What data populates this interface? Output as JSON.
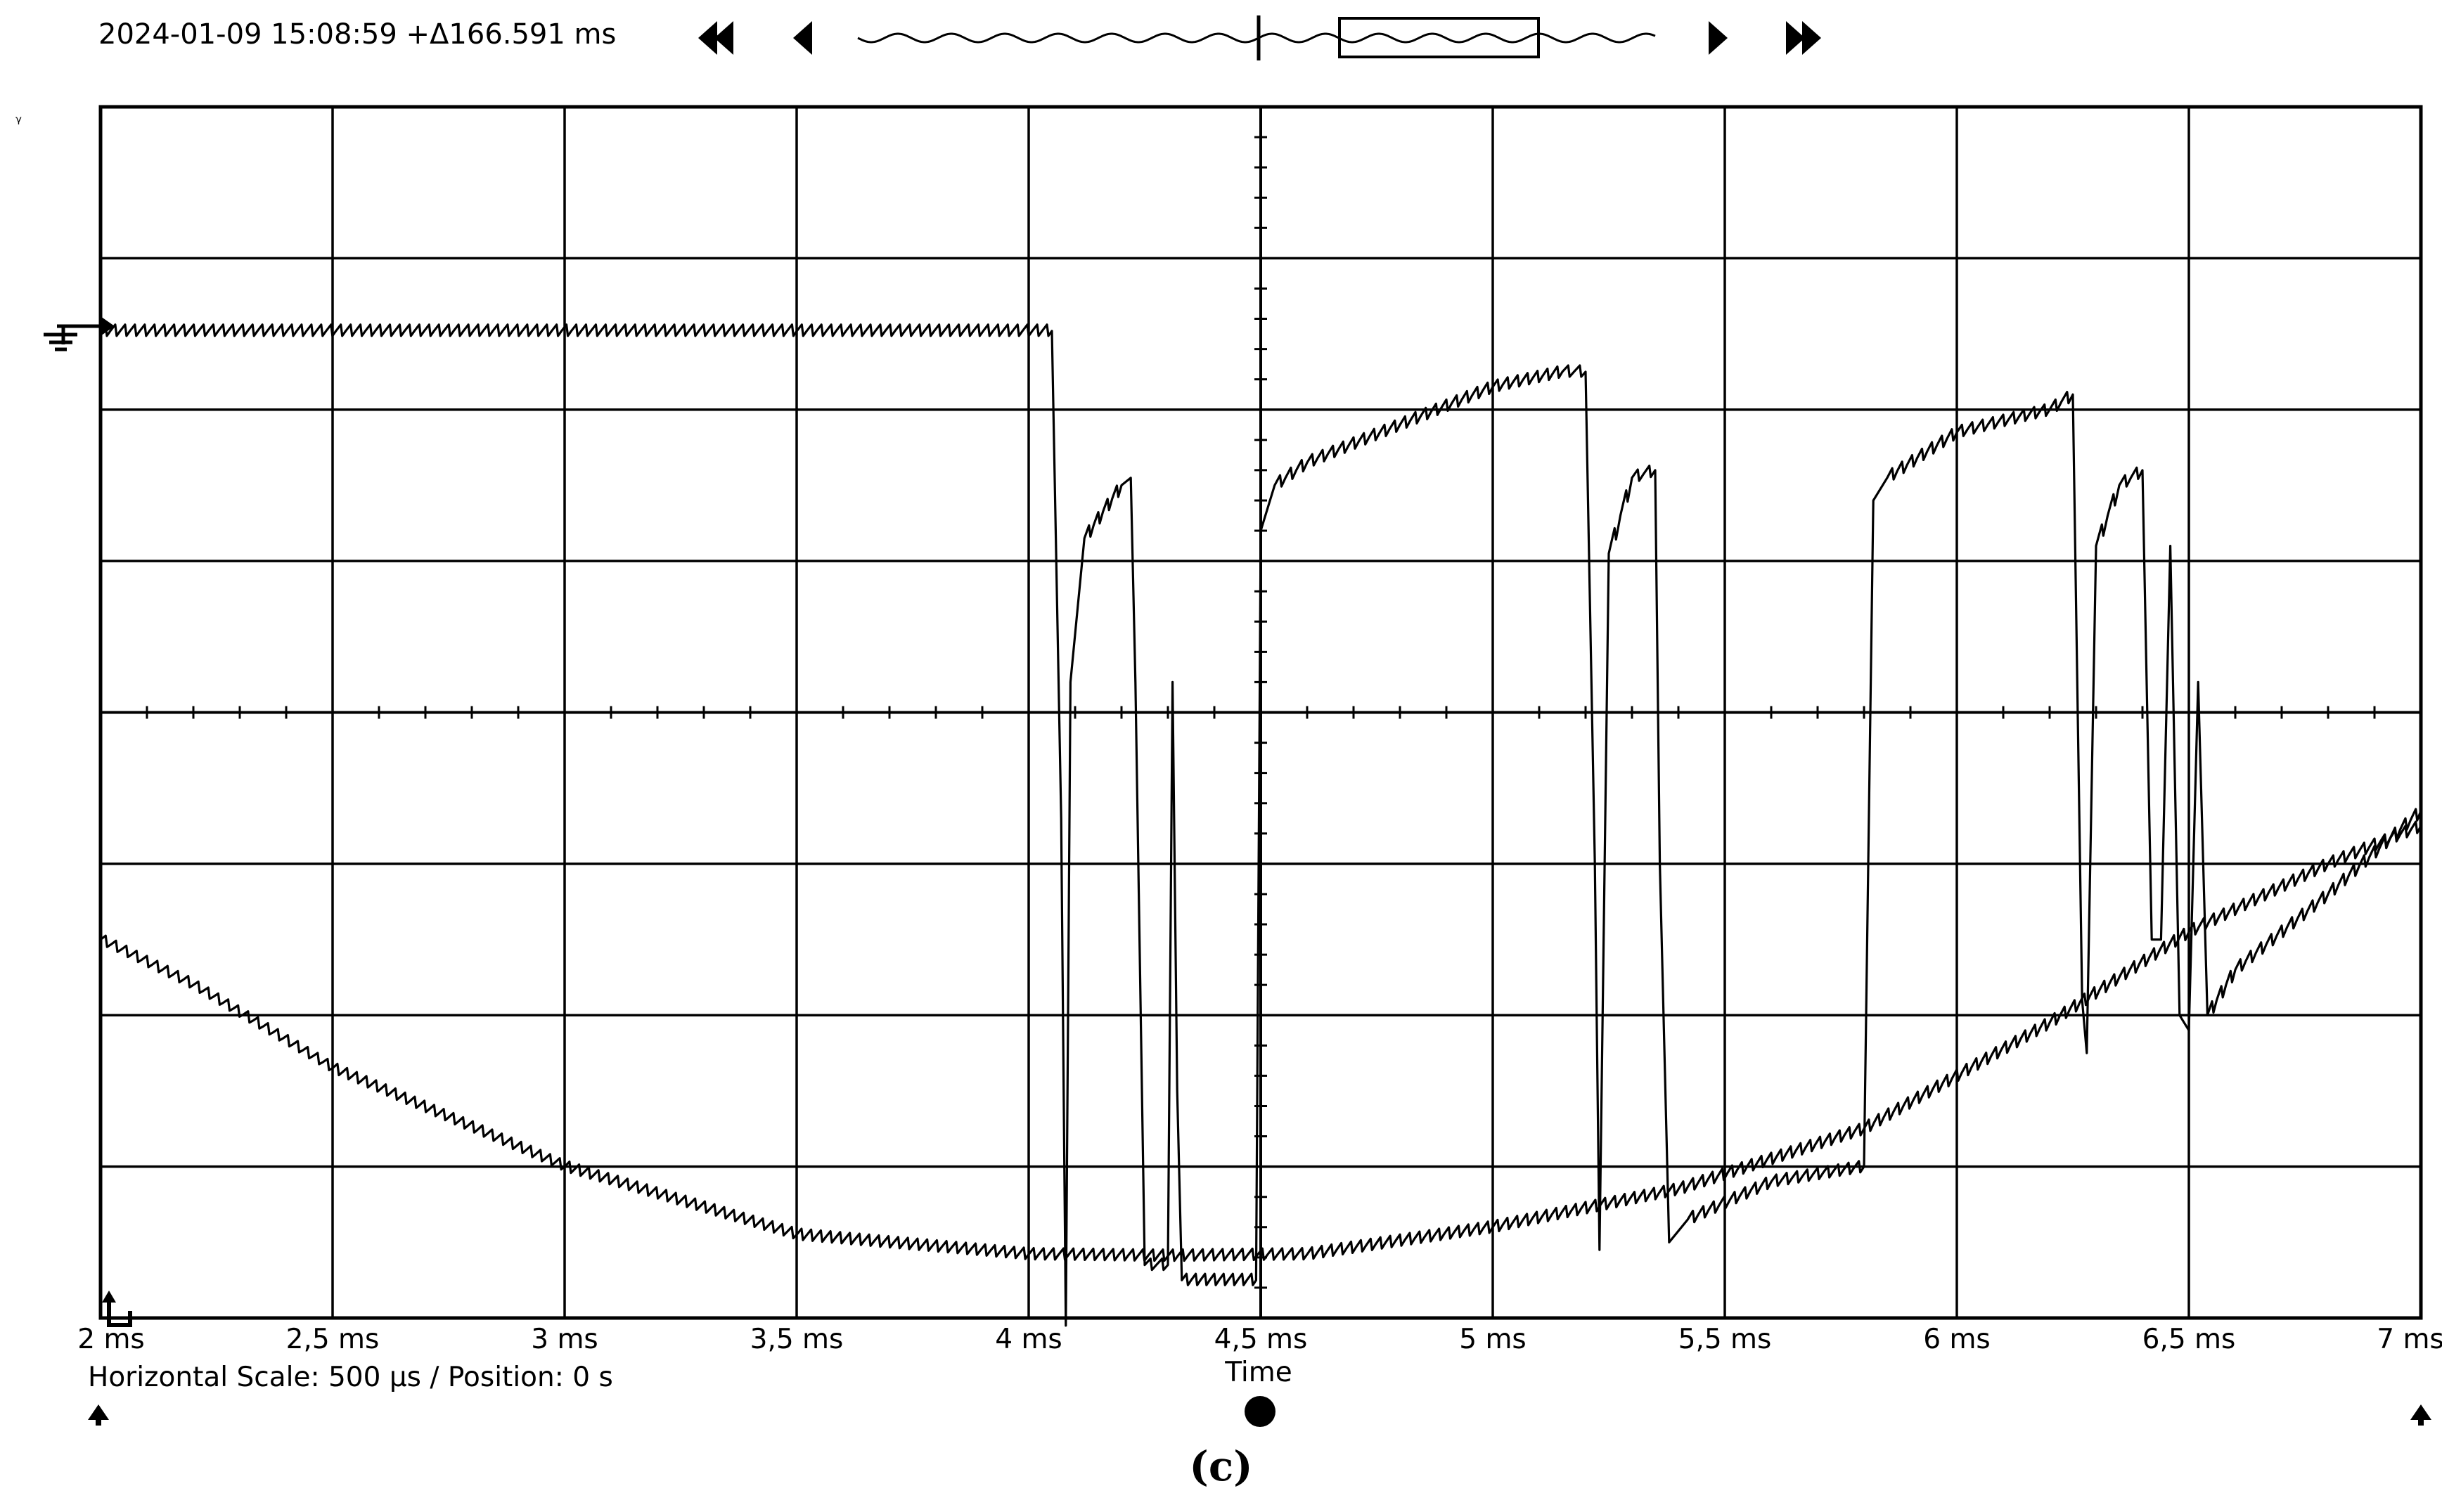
{
  "header": {
    "timestamp": "2024-01-09 15:08:59 +Δ166.591 ms"
  },
  "footer": {
    "scale_info": "Horizontal Scale: 500 µs /  Position: 0 s",
    "axis_title": "Time"
  },
  "caption": "(c)",
  "icons": [
    "rewind-fast-icon",
    "step-back-icon",
    "waveform-overview-icon",
    "step-forward-icon",
    "forward-fast-icon",
    "ground-marker-icon",
    "trigger-marker-icon",
    "up-arrow-icon",
    "record-button-icon"
  ],
  "chart_data": {
    "type": "line",
    "title": "",
    "xlabel": "Time",
    "ylabel": "",
    "x_unit": "ms",
    "xlim": [
      2,
      7
    ],
    "y_divisions": 8,
    "ylim_div": [
      0,
      8
    ],
    "x_ticks": [
      "2 ms",
      "2,5 ms",
      "3 ms",
      "3,5 ms",
      "4 ms",
      "4,5 ms",
      "5 ms",
      "5,5 ms",
      "6 ms",
      "6,5 ms",
      "7 ms"
    ],
    "grid": true,
    "series": [
      {
        "points": [
          [
            2.0,
            6.52
          ],
          [
            4.05,
            6.52
          ],
          [
            4.07,
            3.3
          ],
          [
            4.08,
            -0.05
          ],
          [
            4.09,
            4.2
          ],
          [
            4.12,
            5.15
          ],
          [
            4.2,
            5.5
          ],
          [
            4.22,
            5.55
          ],
          [
            4.23,
            4.2
          ],
          [
            4.25,
            0.35
          ],
          [
            4.3,
            0.35
          ],
          [
            4.31,
            4.2
          ],
          [
            4.32,
            1.5
          ],
          [
            4.33,
            0.25
          ],
          [
            4.49,
            0.25
          ],
          [
            4.5,
            5.2
          ],
          [
            4.53,
            5.5
          ],
          [
            4.6,
            5.65
          ],
          [
            4.8,
            5.9
          ],
          [
            5.0,
            6.15
          ],
          [
            5.15,
            6.25
          ],
          [
            5.2,
            6.25
          ],
          [
            5.22,
            3.0
          ],
          [
            5.23,
            0.45
          ],
          [
            5.25,
            5.05
          ],
          [
            5.3,
            5.55
          ],
          [
            5.35,
            5.6
          ],
          [
            5.36,
            3.0
          ],
          [
            5.38,
            0.5
          ],
          [
            5.42,
            0.65
          ],
          [
            5.6,
            0.9
          ],
          [
            5.8,
            1.0
          ],
          [
            5.82,
            5.4
          ],
          [
            5.85,
            5.55
          ],
          [
            6.0,
            5.85
          ],
          [
            6.2,
            6.0
          ],
          [
            6.25,
            6.1
          ],
          [
            6.27,
            2.1
          ],
          [
            6.28,
            1.75
          ],
          [
            6.3,
            5.1
          ],
          [
            6.35,
            5.5
          ],
          [
            6.4,
            5.6
          ],
          [
            6.42,
            2.5
          ],
          [
            6.44,
            2.5
          ],
          [
            6.46,
            5.1
          ],
          [
            6.48,
            2.0
          ],
          [
            6.5,
            1.9
          ],
          [
            6.52,
            4.2
          ],
          [
            6.54,
            2.0
          ],
          [
            6.6,
            2.3
          ],
          [
            6.8,
            2.8
          ],
          [
            7.0,
            3.35
          ]
        ]
      },
      {
        "points": [
          [
            2.0,
            2.5
          ],
          [
            2.2,
            2.2
          ],
          [
            2.5,
            1.65
          ],
          [
            3.0,
            1.0
          ],
          [
            3.5,
            0.55
          ],
          [
            4.0,
            0.42
          ],
          [
            4.3,
            0.41
          ],
          [
            4.6,
            0.42
          ],
          [
            5.0,
            0.6
          ],
          [
            5.4,
            0.85
          ],
          [
            5.8,
            1.25
          ],
          [
            6.2,
            1.95
          ],
          [
            6.5,
            2.55
          ],
          [
            6.8,
            3.0
          ],
          [
            7.0,
            3.25
          ]
        ]
      }
    ]
  }
}
